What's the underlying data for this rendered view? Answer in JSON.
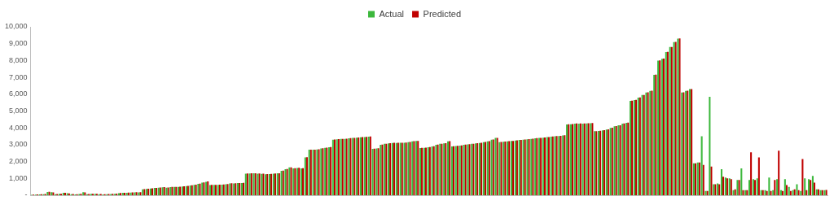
{
  "chart_data": {
    "type": "bar",
    "categories": [
      null,
      null,
      null,
      null,
      null,
      null,
      null,
      null,
      null,
      null,
      null,
      null,
      null,
      null,
      null,
      null,
      null,
      null,
      null,
      null,
      null,
      null,
      null,
      null,
      null,
      null,
      null,
      null,
      null,
      null,
      null,
      null,
      null,
      null,
      null,
      null,
      null,
      null,
      null,
      null,
      null,
      null,
      null,
      null,
      null,
      null,
      null,
      null,
      null,
      null,
      null,
      null,
      null,
      null,
      null,
      null,
      null,
      null,
      null,
      null,
      null,
      null,
      null,
      null,
      null,
      null,
      null,
      null,
      null,
      null,
      null,
      null,
      null,
      null,
      null,
      null,
      null,
      null,
      null,
      null,
      null,
      null,
      null,
      null,
      null,
      null,
      null,
      null,
      null,
      null,
      null,
      null,
      null,
      null,
      null,
      null,
      null,
      null,
      null,
      null,
      null,
      null,
      null,
      null,
      null,
      null,
      null,
      null,
      null,
      null,
      null,
      null,
      null,
      null,
      null,
      null,
      null,
      null,
      null,
      null,
      null,
      null,
      null,
      null,
      null,
      null,
      null,
      null,
      null,
      null,
      null,
      null,
      null,
      null,
      null,
      null,
      null,
      null,
      null,
      null,
      null,
      null,
      null,
      null,
      null,
      null,
      null,
      null,
      null,
      null,
      null,
      null,
      null,
      null,
      null,
      null,
      null,
      null,
      null,
      null,
      null,
      null,
      null,
      null,
      null,
      null,
      null,
      null,
      null,
      null,
      null,
      null,
      null,
      null,
      null,
      null,
      null,
      null,
      null,
      null,
      null,
      null,
      null,
      null,
      null,
      null,
      null,
      null,
      null,
      null,
      null,
      null,
      null,
      null,
      null,
      null,
      null,
      null,
      null,
      null,
      null
    ],
    "series": [
      {
        "name": "Actual",
        "color": "#3cb83c",
        "values": [
          30,
          40,
          50,
          60,
          190,
          180,
          60,
          80,
          150,
          120,
          60,
          50,
          70,
          180,
          60,
          80,
          90,
          60,
          50,
          60,
          70,
          90,
          120,
          140,
          150,
          160,
          170,
          170,
          350,
          380,
          400,
          430,
          450,
          470,
          450,
          480,
          490,
          500,
          520,
          540,
          580,
          620,
          680,
          750,
          800,
          600,
          610,
          620,
          630,
          650,
          700,
          700,
          720,
          730,
          1280,
          1290,
          1300,
          1280,
          1270,
          1250,
          1260,
          1280,
          1300,
          1450,
          1550,
          1650,
          1600,
          1620,
          1600,
          2250,
          2700,
          2700,
          2720,
          2780,
          2820,
          2850,
          3300,
          3320,
          3340,
          3350,
          3380,
          3400,
          3420,
          3440,
          3460,
          3480,
          2750,
          2780,
          3000,
          3050,
          3080,
          3100,
          3100,
          3110,
          3120,
          3150,
          3200,
          3220,
          2800,
          2820,
          2850,
          2900,
          3000,
          3050,
          3080,
          3200,
          2900,
          2920,
          2950,
          3000,
          3020,
          3050,
          3080,
          3100,
          3150,
          3200,
          3300,
          3400,
          3150,
          3180,
          3200,
          3220,
          3250,
          3280,
          3300,
          3320,
          3350,
          3380,
          3400,
          3420,
          3450,
          3480,
          3500,
          3520,
          3550,
          4200,
          4220,
          4250,
          4250,
          4250,
          4260,
          4280,
          3800,
          3820,
          3850,
          3900,
          4000,
          4100,
          4150,
          4250,
          4300,
          5600,
          5650,
          5800,
          5950,
          6100,
          6200,
          7150,
          8000,
          8100,
          8500,
          8800,
          9100,
          9300,
          6100,
          6200,
          6300,
          1900,
          1950,
          3500,
          250,
          5850,
          650,
          700,
          1550,
          1050,
          1000,
          300,
          900,
          1600,
          300,
          900,
          950,
          1000,
          300,
          300,
          1050,
          300,
          950,
          300,
          950,
          500,
          300,
          650,
          250,
          1000,
          950,
          1150,
          350,
          300,
          300
        ]
      },
      {
        "name": "Predicted",
        "color": "#c00000",
        "values": [
          40,
          50,
          60,
          70,
          200,
          170,
          70,
          90,
          140,
          110,
          70,
          60,
          80,
          170,
          70,
          90,
          80,
          70,
          60,
          70,
          80,
          100,
          130,
          150,
          160,
          170,
          180,
          180,
          360,
          390,
          410,
          440,
          460,
          480,
          460,
          490,
          500,
          510,
          530,
          550,
          590,
          630,
          690,
          760,
          820,
          610,
          620,
          630,
          640,
          660,
          710,
          710,
          730,
          740,
          1290,
          1300,
          1310,
          1290,
          1280,
          1260,
          1270,
          1290,
          1310,
          1460,
          1560,
          1660,
          1610,
          1630,
          1610,
          2260,
          2710,
          2710,
          2730,
          2790,
          2830,
          2860,
          3310,
          3330,
          3350,
          3360,
          3390,
          3410,
          3430,
          3450,
          3470,
          3490,
          2760,
          2790,
          3010,
          3060,
          3090,
          3110,
          3110,
          3120,
          3130,
          3160,
          3210,
          3230,
          2810,
          2830,
          2860,
          2910,
          3010,
          3060,
          3090,
          3210,
          2910,
          2930,
          2960,
          3010,
          3030,
          3060,
          3090,
          3110,
          3160,
          3210,
          3310,
          3410,
          3160,
          3190,
          3210,
          3230,
          3260,
          3290,
          3310,
          3330,
          3360,
          3390,
          3410,
          3430,
          3460,
          3490,
          3510,
          3530,
          3560,
          4210,
          4230,
          4260,
          4260,
          4260,
          4270,
          4290,
          3810,
          3830,
          3860,
          3910,
          4010,
          4110,
          4160,
          4260,
          4310,
          5610,
          5660,
          5810,
          5960,
          6110,
          6210,
          7160,
          8010,
          8110,
          8510,
          8810,
          9110,
          9310,
          6110,
          6210,
          6310,
          1900,
          1950,
          1800,
          250,
          1700,
          650,
          650,
          1100,
          1000,
          950,
          350,
          900,
          300,
          300,
          2550,
          900,
          2250,
          300,
          250,
          250,
          900,
          2650,
          250,
          600,
          250,
          350,
          300,
          2150,
          300,
          900,
          750,
          350,
          300,
          320
        ]
      }
    ],
    "ylim": [
      0,
      10000
    ],
    "yticks": [
      {
        "value": 0,
        "label": "-"
      },
      {
        "value": 1000,
        "label": "1,000"
      },
      {
        "value": 2000,
        "label": "2,000"
      },
      {
        "value": 3000,
        "label": "3,000"
      },
      {
        "value": 4000,
        "label": "4,000"
      },
      {
        "value": 5000,
        "label": "5,000"
      },
      {
        "value": 6000,
        "label": "6,000"
      },
      {
        "value": 7000,
        "label": "7,000"
      },
      {
        "value": 8000,
        "label": "8,000"
      },
      {
        "value": 9000,
        "label": "9,000"
      },
      {
        "value": 10000,
        "label": "10,000"
      }
    ],
    "grid": false,
    "legend": "top",
    "tick_labels": "y"
  }
}
